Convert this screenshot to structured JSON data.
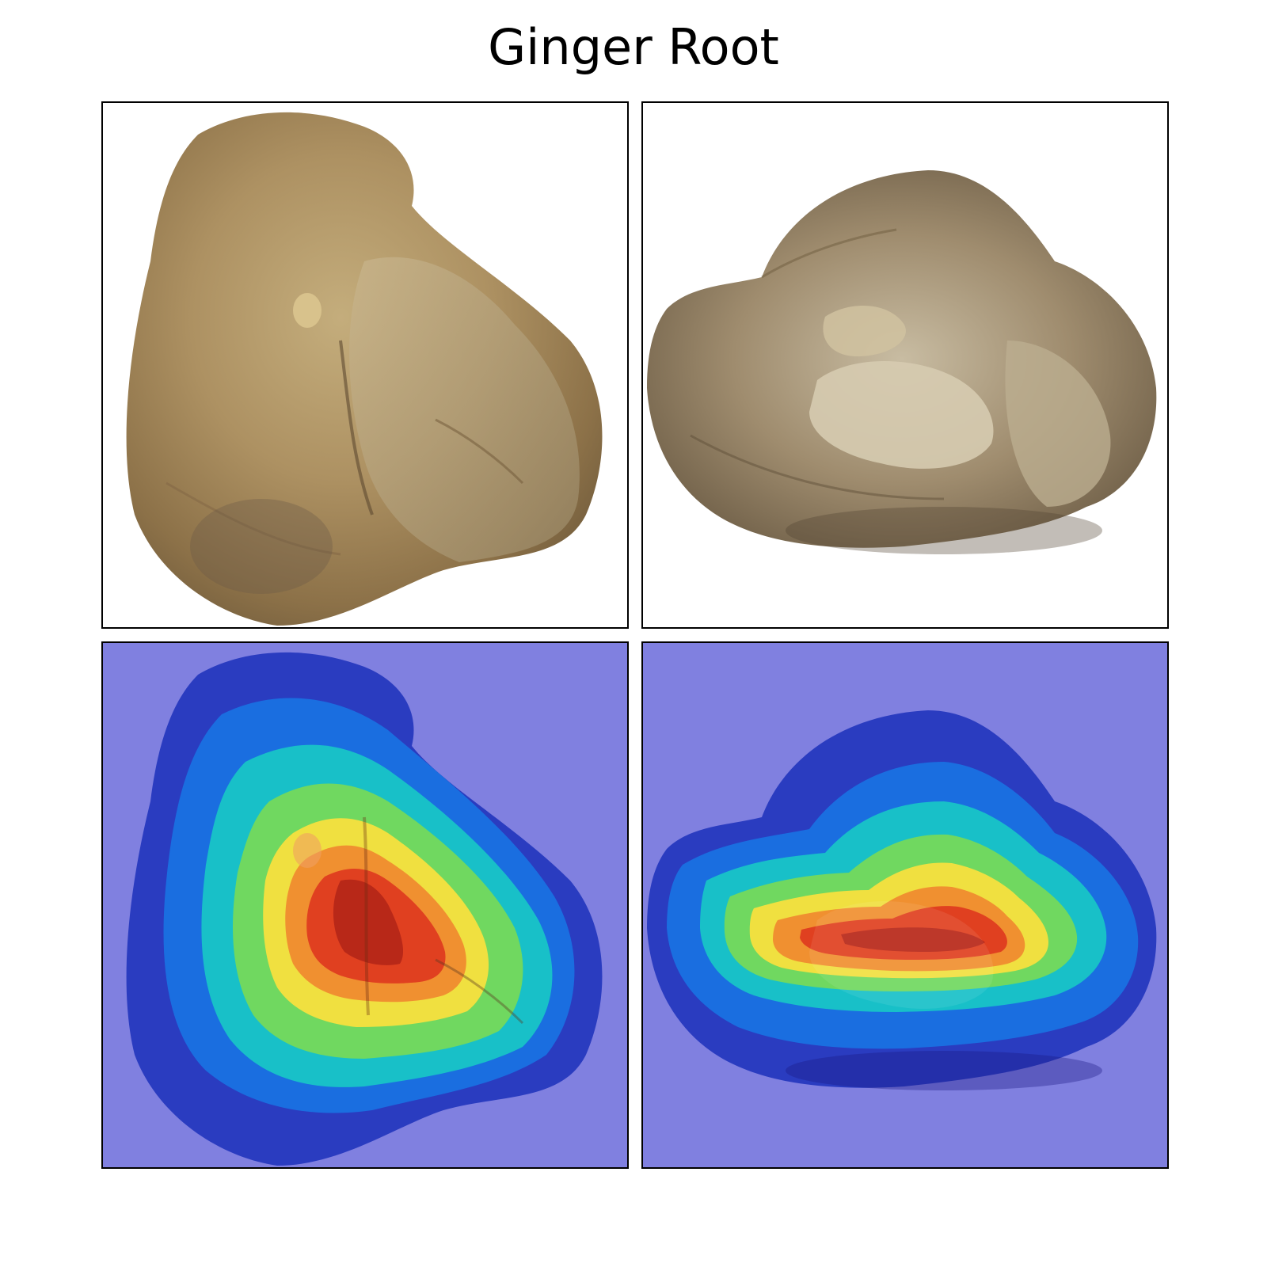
{
  "figure": {
    "title": "Ginger Root"
  },
  "panels": [
    {
      "icon": "ginger-root-photo-icon"
    },
    {
      "icon": "ginger-root-photo-icon"
    },
    {
      "icon": "heatmap-overlay-icon"
    },
    {
      "icon": "heatmap-overlay-icon"
    }
  ]
}
